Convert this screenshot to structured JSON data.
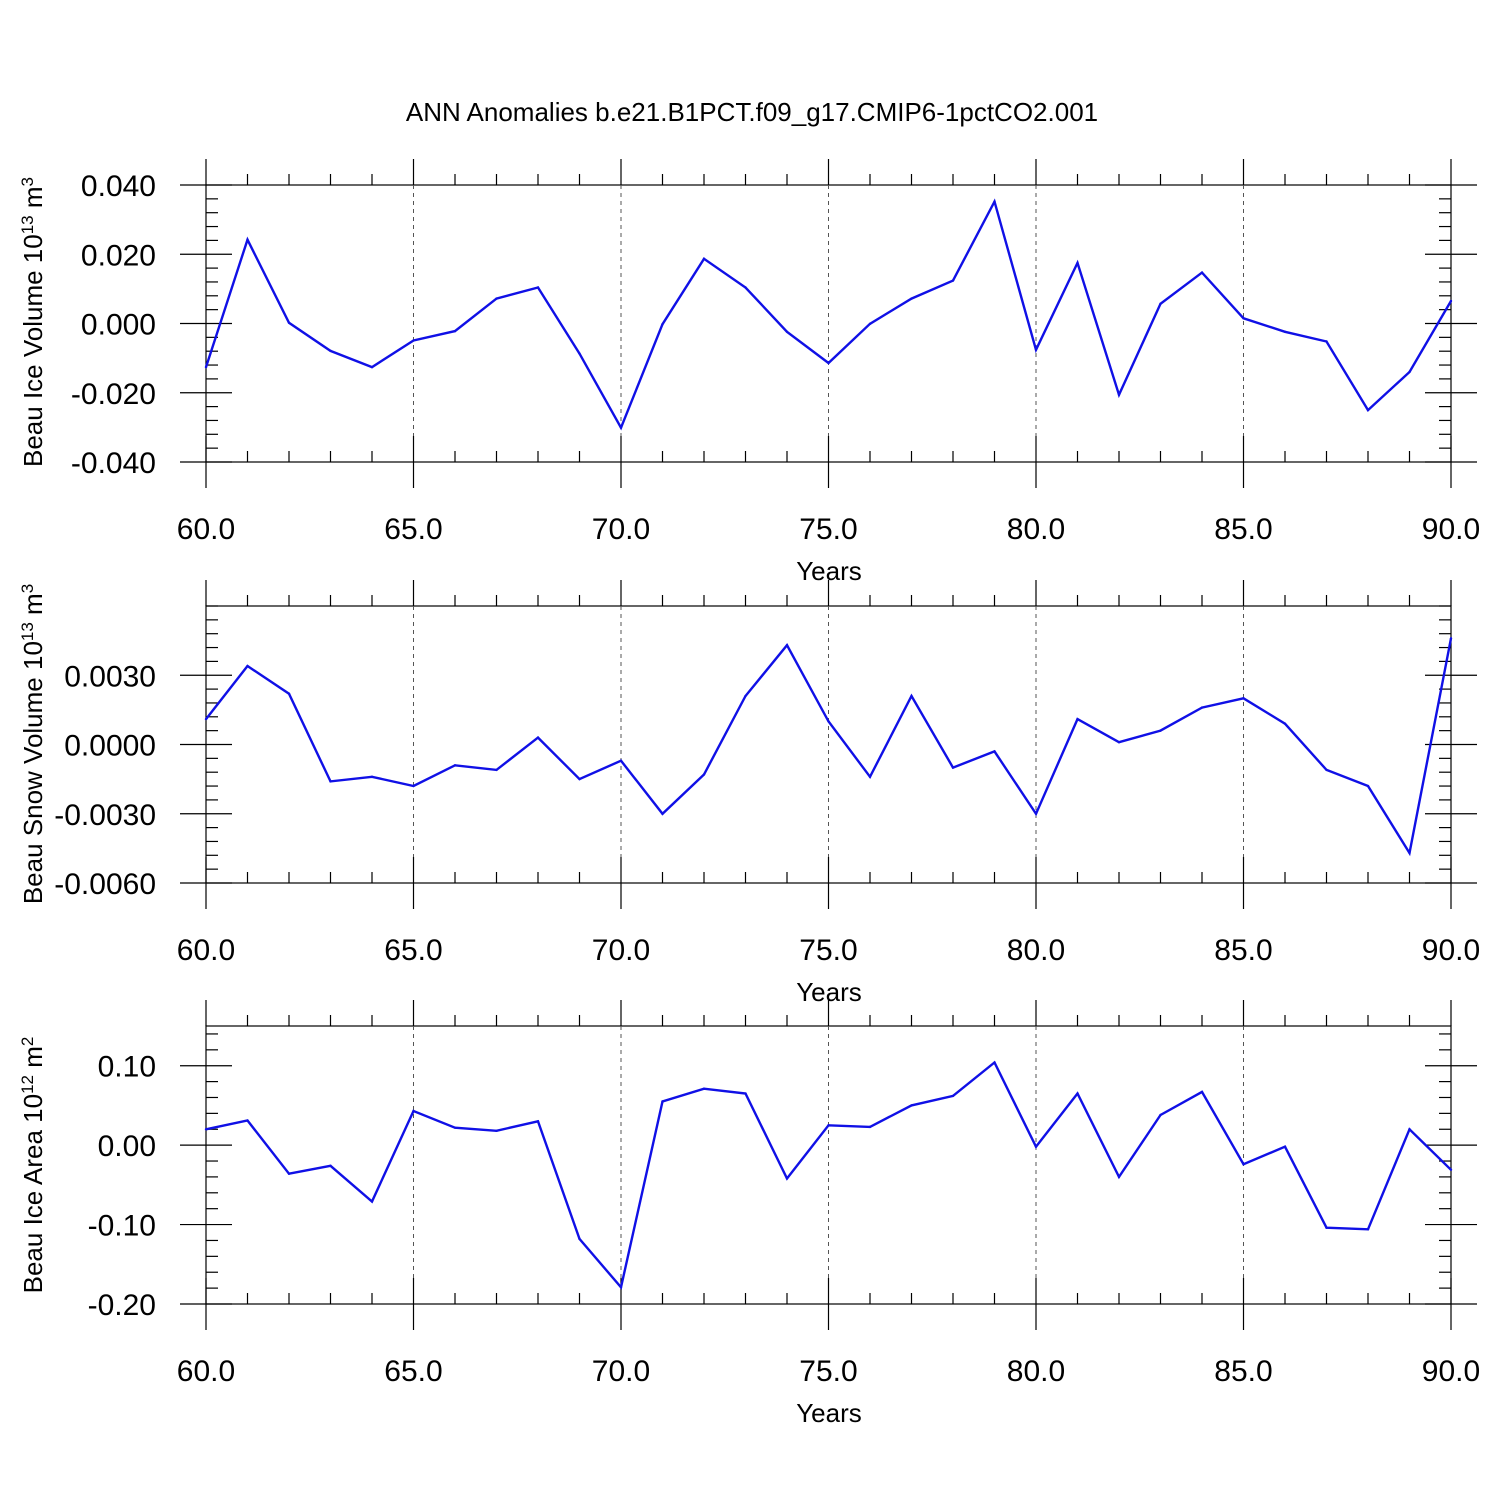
{
  "title": "ANN Anomalies b.e21.B1PCT.f09_g17.CMIP6-1pctCO2.001",
  "chart_data": [
    {
      "type": "line",
      "ylabel": "Beau Ice Volume 10",
      "ylabel_exp": "13",
      "ylabel_unit": " m",
      "ylabel_unit_exp": "3",
      "xlabel": "Years",
      "xlim": [
        60,
        90
      ],
      "ylim": [
        -0.04,
        0.04
      ],
      "grid": "x-dashed",
      "x_ticks": [
        60,
        65,
        70,
        75,
        80,
        85,
        90
      ],
      "x_tick_labels": [
        "60.0",
        "65.0",
        "70.0",
        "75.0",
        "80.0",
        "85.0",
        "90.0"
      ],
      "y_ticks": [
        -0.04,
        -0.02,
        0.0,
        0.02,
        0.04
      ],
      "y_tick_labels": [
        "-0.040",
        "-0.020",
        "0.000",
        "0.020",
        "0.040"
      ],
      "color": "#1010e6",
      "x": [
        60,
        61,
        62,
        63,
        64,
        65,
        66,
        67,
        68,
        69,
        70,
        71,
        72,
        73,
        74,
        75,
        76,
        77,
        78,
        79,
        80,
        81,
        82,
        83,
        84,
        85,
        86,
        87,
        88,
        89,
        90
      ],
      "values": [
        -0.0126,
        0.0242,
        0.0002,
        -0.0079,
        -0.0126,
        -0.0049,
        -0.0022,
        0.0072,
        0.0104,
        -0.0087,
        -0.0301,
        -0.0002,
        0.0187,
        0.0104,
        -0.0024,
        -0.0114,
        -0.0001,
        0.0072,
        0.0124,
        0.0352,
        -0.0076,
        0.0175,
        -0.0206,
        0.0057,
        0.0147,
        0.0015,
        -0.0024,
        -0.0052,
        -0.025,
        -0.014,
        0.0065
      ]
    },
    {
      "type": "line",
      "ylabel": "Beau Snow Volume 10",
      "ylabel_exp": "13",
      "ylabel_unit": " m",
      "ylabel_unit_exp": "3",
      "xlabel": "Years",
      "xlim": [
        60,
        90
      ],
      "ylim": [
        -0.006,
        0.006
      ],
      "grid": "x-dashed",
      "x_ticks": [
        60,
        65,
        70,
        75,
        80,
        85,
        90
      ],
      "x_tick_labels": [
        "60.0",
        "65.0",
        "70.0",
        "75.0",
        "80.0",
        "85.0",
        "90.0"
      ],
      "y_ticks": [
        -0.006,
        -0.003,
        0.0,
        0.003
      ],
      "y_tick_labels": [
        "-0.0060",
        "-0.0030",
        "0.0000",
        "0.0030"
      ],
      "color": "#1010e6",
      "x": [
        60,
        61,
        62,
        63,
        64,
        65,
        66,
        67,
        68,
        69,
        70,
        71,
        72,
        73,
        74,
        75,
        76,
        77,
        78,
        79,
        80,
        81,
        82,
        83,
        84,
        85,
        86,
        87,
        88,
        89,
        90
      ],
      "values": [
        0.0011,
        0.0034,
        0.0022,
        -0.0016,
        -0.0014,
        -0.0018,
        -0.0009,
        -0.0011,
        0.0003,
        -0.0015,
        -0.0007,
        -0.003,
        -0.0013,
        0.0021,
        0.0043,
        0.001,
        -0.0014,
        0.0021,
        -0.001,
        -0.0003,
        -0.003,
        0.0011,
        0.0001,
        0.0006,
        0.0016,
        0.002,
        0.0009,
        -0.0011,
        -0.0018,
        -0.0047,
        0.0046
      ]
    },
    {
      "type": "line",
      "ylabel": "Beau Ice Area 10",
      "ylabel_exp": "12",
      "ylabel_unit": " m",
      "ylabel_unit_exp": "2",
      "xlabel": "Years",
      "xlim": [
        60,
        90
      ],
      "ylim": [
        -0.2,
        0.15
      ],
      "grid": "x-dashed",
      "x_ticks": [
        60,
        65,
        70,
        75,
        80,
        85,
        90
      ],
      "x_tick_labels": [
        "60.0",
        "65.0",
        "70.0",
        "75.0",
        "80.0",
        "85.0",
        "90.0"
      ],
      "y_ticks": [
        -0.2,
        -0.1,
        0.0,
        0.1
      ],
      "y_tick_labels": [
        "-0.20",
        "-0.10",
        "0.00",
        "0.10"
      ],
      "color": "#1010e6",
      "x": [
        60,
        61,
        62,
        63,
        64,
        65,
        66,
        67,
        68,
        69,
        70,
        71,
        72,
        73,
        74,
        75,
        76,
        77,
        78,
        79,
        80,
        81,
        82,
        83,
        84,
        85,
        86,
        87,
        88,
        89,
        90
      ],
      "values": [
        0.02,
        0.031,
        -0.036,
        -0.026,
        -0.071,
        0.043,
        0.022,
        0.018,
        0.03,
        -0.118,
        -0.179,
        0.055,
        0.071,
        0.065,
        -0.042,
        0.025,
        0.023,
        0.05,
        0.062,
        0.104,
        -0.002,
        0.065,
        -0.04,
        0.038,
        0.067,
        -0.024,
        -0.002,
        -0.104,
        -0.106,
        0.02,
        -0.031
      ]
    }
  ]
}
